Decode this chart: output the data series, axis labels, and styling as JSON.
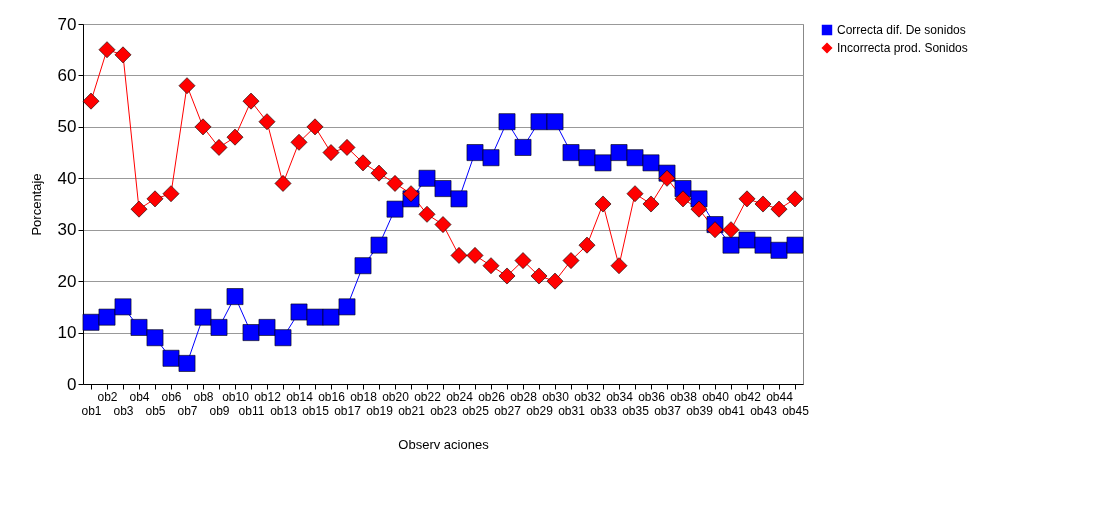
{
  "chart_data": {
    "type": "line",
    "xlabel": "Observ aciones",
    "ylabel": "Porcentaje",
    "categories": [
      "ob1",
      "ob2",
      "ob3",
      "ob4",
      "ob5",
      "ob6",
      "ob7",
      "ob8",
      "ob9",
      "ob10",
      "ob11",
      "ob12",
      "ob13",
      "ob14",
      "ob15",
      "ob16",
      "ob17",
      "ob18",
      "ob19",
      "ob20",
      "ob21",
      "ob22",
      "ob23",
      "ob24",
      "ob25",
      "ob26",
      "ob27",
      "ob28",
      "ob29",
      "ob30",
      "ob31",
      "ob32",
      "ob33",
      "ob34",
      "ob35",
      "ob36",
      "ob37",
      "ob38",
      "ob39",
      "ob40",
      "ob41",
      "ob42",
      "ob43",
      "ob44",
      "ob45"
    ],
    "series": [
      {
        "name": "Correcta dif. De sonidos",
        "color": "#0000ff",
        "marker": "square",
        "values": [
          12,
          13,
          15,
          11,
          9,
          5,
          4,
          13,
          11,
          17,
          10,
          11,
          9,
          14,
          13,
          13,
          15,
          23,
          27,
          34,
          36,
          40,
          38,
          36,
          45,
          44,
          51,
          46,
          51,
          51,
          45,
          44,
          43,
          45,
          44,
          43,
          41,
          38,
          36,
          31,
          27,
          28,
          27,
          26,
          27
        ]
      },
      {
        "name": "Incorrecta prod.  Sonidos",
        "color": "#ff0000",
        "marker": "diamond",
        "values": [
          55,
          65,
          64,
          34,
          36,
          37,
          58,
          50,
          46,
          48,
          55,
          51,
          39,
          47,
          50,
          45,
          46,
          43,
          41,
          39,
          37,
          33,
          31,
          25,
          25,
          23,
          21,
          24,
          21,
          20,
          24,
          27,
          35,
          23,
          37,
          35,
          40,
          36,
          34,
          30,
          30,
          36,
          35,
          34,
          36
        ]
      }
    ],
    "ylim": [
      0,
      70
    ],
    "yticks": [
      0,
      10,
      20,
      30,
      40,
      50,
      60,
      70
    ],
    "grid": "y",
    "legend": "right",
    "line_style": "solid"
  }
}
